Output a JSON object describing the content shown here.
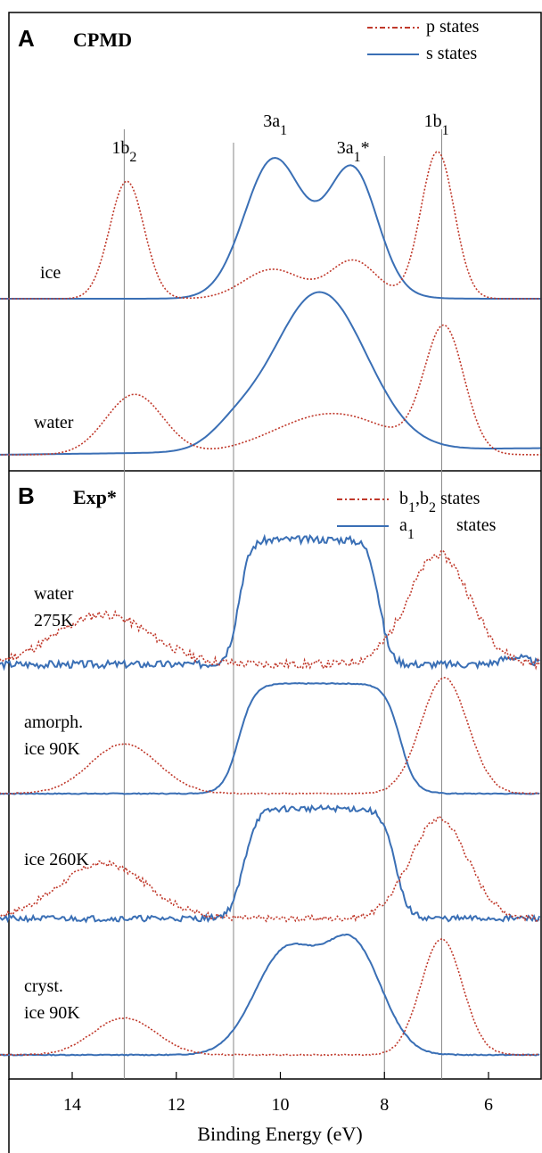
{
  "chart_data": {
    "type": "line",
    "xlabel": "Binding Energy (eV)",
    "xlim": [
      15.8,
      5
    ],
    "x_reversed": true,
    "xticks": [
      14,
      12,
      10,
      8,
      6
    ],
    "guide_lines_x": [
      13,
      10.9,
      8,
      6.9
    ],
    "colors": {
      "p": "#c0392b",
      "s": "#3a6fb5",
      "frame": "#000000",
      "guide": "#888888"
    },
    "panels": [
      {
        "id": "A",
        "letter": "A",
        "method": "CPMD",
        "legend": [
          {
            "label": "p states",
            "style": "dotted",
            "color": "#c0392b"
          },
          {
            "label": "s states",
            "style": "solid",
            "color": "#3a6fb5"
          }
        ],
        "peak_labels": [
          {
            "text": "1b",
            "sub": "2",
            "x": 13.0,
            "row": "upper"
          },
          {
            "text": "3a",
            "sub": "1",
            "x": 10.1,
            "row": "top"
          },
          {
            "text": "3a",
            "sub": "1",
            "tail": "*",
            "x": 8.6,
            "row": "upper"
          },
          {
            "text": "1b",
            "sub": "1",
            "x": 7.0,
            "row": "top"
          }
        ],
        "series": [
          {
            "curve": "ice",
            "label": "ice",
            "p_states": {
              "x_start": 15.5,
              "x_end": 5.0,
              "baseline": 0.0,
              "peaks": [
                {
                  "center": 12.95,
                  "height": 0.8,
                  "width": 0.33
                },
                {
                  "center": 10.15,
                  "height": 0.2,
                  "width": 0.55
                },
                {
                  "center": 8.6,
                  "height": 0.26,
                  "width": 0.45
                },
                {
                  "center": 6.98,
                  "height": 1.0,
                  "width": 0.32
                }
              ]
            },
            "s_states": {
              "x_start": 15.5,
              "x_end": 5.0,
              "baseline": 0.0,
              "peaks": [
                {
                  "center": 10.15,
                  "height": 0.85,
                  "width": 0.55
                },
                {
                  "center": 8.6,
                  "height": 0.78,
                  "width": 0.47
                },
                {
                  "center": 9.35,
                  "height": 0.15,
                  "width": 0.9
                }
              ]
            }
          },
          {
            "curve": "water",
            "label": "water",
            "p_states": {
              "x_start": 15.5,
              "x_end": 5.0,
              "baseline": 0.0,
              "peaks": [
                {
                  "center": 12.8,
                  "height": 0.38,
                  "width": 0.55
                },
                {
                  "center": 9.0,
                  "height": 0.26,
                  "width": 1.1
                },
                {
                  "center": 6.85,
                  "height": 0.78,
                  "width": 0.38
                }
              ]
            },
            "s_states": {
              "x_start": 15.5,
              "x_end": 5.0,
              "baseline": 0.0,
              "slope": 0.004,
              "peaks": [
                {
                  "center": 9.25,
                  "height": 1.0,
                  "width": 0.9
                },
                {
                  "center": 10.9,
                  "height": 0.09,
                  "width": 0.45
                }
              ]
            }
          }
        ]
      },
      {
        "id": "B",
        "letter": "B",
        "method": "Exp*",
        "legend": [
          {
            "label": "b",
            "sub1": "1",
            "mid": ",b",
            "sub2": "2",
            "tail": " states",
            "style": "dotted",
            "color": "#c0392b"
          },
          {
            "label": "a",
            "sub1": "1",
            "tail": "states",
            "style": "solid",
            "color": "#3a6fb5"
          }
        ],
        "series": [
          {
            "curve": "water-275K",
            "label_lines": [
              "water",
              "275K"
            ],
            "p_states": {
              "x_start": 15.8,
              "x_end": 5.0,
              "baseline": 0.0,
              "noise": 0.035,
              "seed": 11,
              "peaks": [
                {
                  "center": 13.4,
                  "height": 0.4,
                  "width": 0.9
                },
                {
                  "center": 6.95,
                  "height": 0.88,
                  "width": 0.6
                }
              ]
            },
            "s_states": {
              "x_start": 15.8,
              "x_end": 5.0,
              "baseline": 0.0,
              "noise": 0.03,
              "seed": 3,
              "plateau": {
                "left": 10.8,
                "right": 8.1,
                "height": 1.0,
                "edge": 0.3
              },
              "peaks": [
                {
                  "center": 5.5,
                  "height": 0.06,
                  "width": 0.25
                }
              ]
            }
          },
          {
            "curve": "amorph-ice-90K",
            "label_lines": [
              "amorph.",
              "ice 90K"
            ],
            "p_states": {
              "x_start": 15.8,
              "x_end": 5.0,
              "baseline": 0.0,
              "noise": 0.005,
              "seed": 5,
              "peaks": [
                {
                  "center": 13.0,
                  "height": 0.43,
                  "width": 0.65
                },
                {
                  "center": 6.85,
                  "height": 1.0,
                  "width": 0.45
                }
              ]
            },
            "s_states": {
              "x_start": 15.8,
              "x_end": 5.0,
              "baseline": 0.0,
              "noise": 0.004,
              "seed": 7,
              "plateau": {
                "left": 10.8,
                "right": 7.7,
                "height": 0.95,
                "edge": 0.42
              }
            }
          },
          {
            "curve": "ice-260K",
            "label_lines": [
              "ice 260K"
            ],
            "p_states": {
              "x_start": 15.8,
              "x_end": 5.0,
              "baseline": 0.0,
              "noise": 0.03,
              "seed": 17,
              "peaks": [
                {
                  "center": 13.4,
                  "height": 0.55,
                  "width": 0.85
                },
                {
                  "center": 6.95,
                  "height": 1.0,
                  "width": 0.55
                }
              ]
            },
            "s_states": {
              "x_start": 15.8,
              "x_end": 5.0,
              "baseline": 0.0,
              "noise": 0.03,
              "seed": 21,
              "plateau": {
                "left": 10.7,
                "right": 7.8,
                "height": 1.1,
                "edge": 0.35
              }
            }
          },
          {
            "curve": "cryst-ice-90K",
            "label_lines": [
              "cryst.",
              "ice 90K"
            ],
            "p_states": {
              "x_start": 15.8,
              "x_end": 5.0,
              "baseline": 0.0,
              "noise": 0.005,
              "seed": 9,
              "peaks": [
                {
                  "center": 13.0,
                  "height": 0.32,
                  "width": 0.6
                },
                {
                  "center": 6.9,
                  "height": 1.0,
                  "width": 0.4
                }
              ]
            },
            "s_states": {
              "x_start": 15.8,
              "x_end": 5.0,
              "baseline": 0.0,
              "noise": 0.004,
              "seed": 13,
              "twin": [
                {
                  "center": 9.9,
                  "height": 0.88,
                  "width": 0.6
                },
                {
                  "center": 8.6,
                  "height": 0.93,
                  "width": 0.55
                }
              ]
            }
          }
        ]
      }
    ]
  }
}
